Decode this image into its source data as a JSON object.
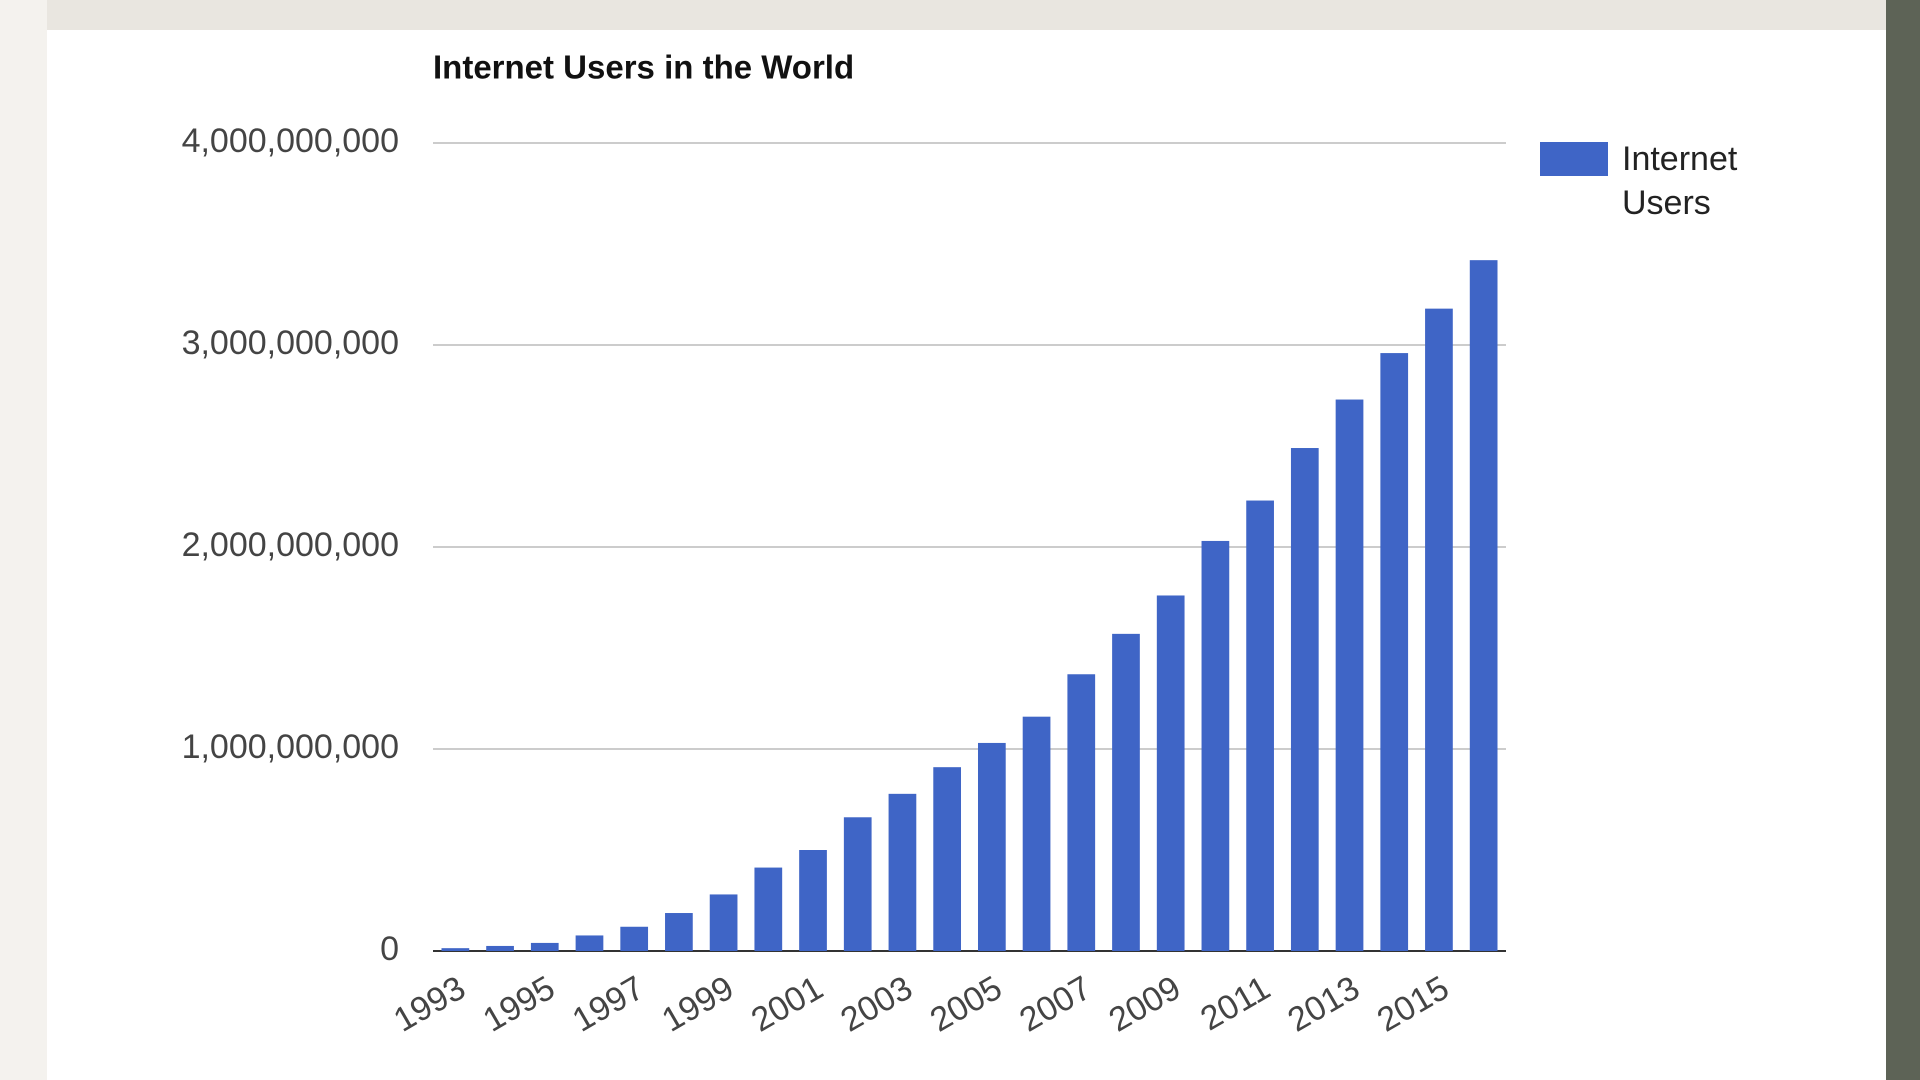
{
  "chart_data": {
    "type": "bar",
    "title": "Internet Users in the World",
    "categories": [
      "1993",
      null,
      "1995",
      null,
      "1997",
      null,
      "1999",
      null,
      "2001",
      null,
      "2003",
      null,
      "2005",
      null,
      "2007",
      null,
      "2009",
      null,
      "2011",
      null,
      "2013",
      null,
      "2015",
      null
    ],
    "series": [
      {
        "name": "Internet Users",
        "color": "#3f65c6",
        "values": [
          14000000,
          25000000,
          40000000,
          77000000,
          120000000,
          188000000,
          280000000,
          413000000,
          500000000,
          662000000,
          778000000,
          910000000,
          1030000000,
          1160000000,
          1370000000,
          1570000000,
          1760000000,
          2030000000,
          2230000000,
          2490000000,
          2730000000,
          2960000000,
          3180000000,
          3420000000
        ]
      }
    ],
    "ylim": [
      0,
      4000000000
    ],
    "yticks": [
      0,
      {
        "value": 1000000000,
        "label": "1,000,000,000"
      },
      {
        "value": 2000000000,
        "label": "2,000,000,000"
      },
      {
        "value": 3000000000,
        "label": "3,000,000,000"
      },
      {
        "value": 4000000000,
        "label": "4,000,000,000"
      }
    ],
    "grid": true,
    "legend": "right"
  }
}
